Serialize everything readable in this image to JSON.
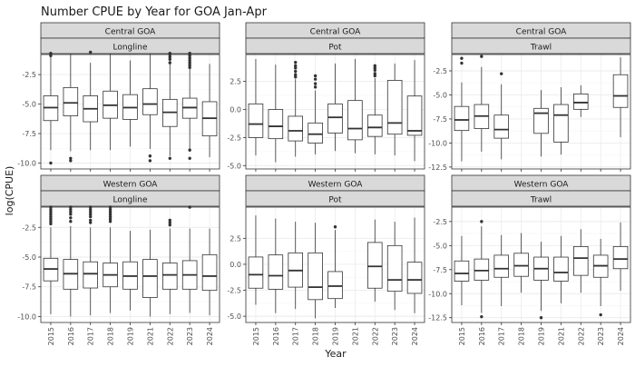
{
  "chart_data": {
    "type": "boxplot",
    "title": "Number CPUE by Year for GOA Jan-Apr",
    "xlabel": "Year",
    "ylabel": "log(CPUE)",
    "categories": [
      "2015",
      "2016",
      "2017",
      "2018",
      "2019",
      "2021",
      "2022",
      "2023",
      "2024"
    ],
    "rows": [
      {
        "region": "Central GOA",
        "panels": [
          {
            "gear": "Longline",
            "ylim": [
              -10.5,
              -0.8
            ],
            "yticks": [
              -2.5,
              -5.0,
              -7.5,
              -10.0
            ],
            "yticklabels": [
              "-2.5",
              "-5.0",
              "-7.5",
              "-10.0"
            ],
            "boxes": [
              {
                "year": "2015",
                "lw": -8.9,
                "q1": -6.4,
                "med": -5.3,
                "q3": -4.3,
                "uw": -1.0,
                "outliers": [
                  -0.7,
                  -0.9,
                  -10.0
                ]
              },
              {
                "year": "2016",
                "lw": -9.0,
                "q1": -6.0,
                "med": -4.9,
                "q3": -3.6,
                "uw": -0.7,
                "outliers": [
                  -9.6,
                  -9.8
                ]
              },
              {
                "year": "2017",
                "lw": -8.9,
                "q1": -6.5,
                "med": -5.4,
                "q3": -4.3,
                "uw": -1.5,
                "outliers": [
                  -0.6
                ]
              },
              {
                "year": "2018",
                "lw": -8.9,
                "q1": -6.2,
                "med": -5.1,
                "q3": -3.9,
                "uw": -0.7,
                "outliers": []
              },
              {
                "year": "2019",
                "lw": -8.6,
                "q1": -6.3,
                "med": -5.3,
                "q3": -4.2,
                "uw": -1.3,
                "outliers": []
              },
              {
                "year": "2021",
                "lw": -8.8,
                "q1": -5.9,
                "med": -5.0,
                "q3": -3.7,
                "uw": -0.7,
                "outliers": [
                  -9.4,
                  -9.8
                ]
              },
              {
                "year": "2022",
                "lw": -9.4,
                "q1": -6.9,
                "med": -5.7,
                "q3": -4.6,
                "uw": -1.0,
                "outliers": [
                  -0.7,
                  -0.8,
                  -1.0,
                  -1.2,
                  -1.5,
                  -9.6
                ]
              },
              {
                "year": "2023",
                "lw": -8.8,
                "q1": -6.2,
                "med": -5.3,
                "q3": -4.5,
                "uw": -1.3,
                "outliers": [
                  -0.7,
                  -0.9,
                  -1.1,
                  -1.3,
                  -1.5,
                  -1.7,
                  -1.9,
                  -8.9,
                  -9.6
                ]
              },
              {
                "year": "2024",
                "lw": -9.5,
                "q1": -7.7,
                "med": -6.2,
                "q3": -4.8,
                "uw": -1.6,
                "outliers": []
              }
            ]
          },
          {
            "gear": "Pot",
            "ylim": [
              -5.3,
              4.9
            ],
            "yticks": [
              2.5,
              0.0,
              -2.5,
              -5.0
            ],
            "yticklabels": [
              "2.5",
              "0.0",
              "-2.5",
              "-5.0"
            ],
            "boxes": [
              {
                "year": "2015",
                "lw": -4.1,
                "q1": -2.5,
                "med": -1.3,
                "q3": 0.5,
                "uw": 4.5,
                "outliers": []
              },
              {
                "year": "2016",
                "lw": -4.7,
                "q1": -2.6,
                "med": -1.5,
                "q3": 0.0,
                "uw": 4.0,
                "outliers": []
              },
              {
                "year": "2017",
                "lw": -4.2,
                "q1": -2.8,
                "med": -1.9,
                "q3": -0.6,
                "uw": 2.7,
                "outliers": [
                  2.9,
                  3.1,
                  3.4,
                  3.7,
                  3.9,
                  4.2
                ]
              },
              {
                "year": "2018",
                "lw": -4.0,
                "q1": -3.0,
                "med": -2.2,
                "q3": -1.2,
                "uw": 1.7,
                "outliers": [
                  2.0,
                  2.3,
                  2.7,
                  3.0
                ]
              },
              {
                "year": "2019",
                "lw": -3.7,
                "q1": -2.1,
                "med": -0.7,
                "q3": 0.5,
                "uw": 4.1,
                "outliers": []
              },
              {
                "year": "2021",
                "lw": -3.9,
                "q1": -2.7,
                "med": -1.7,
                "q3": 0.8,
                "uw": 4.5,
                "outliers": []
              },
              {
                "year": "2022",
                "lw": -4.0,
                "q1": -2.4,
                "med": -1.6,
                "q3": -0.5,
                "uw": 2.8,
                "outliers": [
                  3.0,
                  3.2,
                  3.5,
                  3.7,
                  3.9
                ]
              },
              {
                "year": "2023",
                "lw": -4.1,
                "q1": -2.2,
                "med": -1.2,
                "q3": 2.6,
                "uw": 4.1,
                "outliers": []
              },
              {
                "year": "2024",
                "lw": -4.6,
                "q1": -2.3,
                "med": -1.9,
                "q3": 1.2,
                "uw": 4.4,
                "outliers": []
              }
            ]
          },
          {
            "gear": "Trawl",
            "ylim": [
              -12.7,
              -0.8
            ],
            "yticks": [
              -2.5,
              -5.0,
              -7.5,
              -10.0,
              -12.5
            ],
            "yticklabels": [
              "-2.5",
              "-5.0",
              "-7.5",
              "-10.0",
              "-12.5"
            ],
            "boxes": [
              {
                "year": "2015",
                "lw": -11.9,
                "q1": -8.7,
                "med": -7.6,
                "q3": -6.2,
                "uw": -3.7,
                "outliers": [
                  -1.2,
                  -1.7
                ]
              },
              {
                "year": "2016",
                "lw": -10.9,
                "q1": -8.5,
                "med": -7.2,
                "q3": -6.0,
                "uw": -2.1,
                "outliers": [
                  -1.0
                ]
              },
              {
                "year": "2017",
                "lw": -11.7,
                "q1": -9.5,
                "med": -8.6,
                "q3": -7.1,
                "uw": -3.9,
                "outliers": [
                  -2.8
                ]
              },
              {
                "year": "2019",
                "lw": -11.4,
                "q1": -9.0,
                "med": -6.9,
                "q3": -6.4,
                "uw": -4.5,
                "outliers": []
              },
              {
                "year": "2021",
                "lw": -11.2,
                "q1": -9.9,
                "med": -7.1,
                "q3": -6.0,
                "uw": -4.2,
                "outliers": []
              },
              {
                "year": "2022",
                "lw": -7.3,
                "q1": -6.5,
                "med": -5.8,
                "q3": -4.9,
                "uw": -4.0,
                "outliers": []
              },
              {
                "year": "2024",
                "lw": -9.4,
                "q1": -6.3,
                "med": -5.1,
                "q3": -2.9,
                "uw": -1.1,
                "outliers": []
              }
            ]
          }
        ]
      },
      {
        "region": "Western GOA",
        "panels": [
          {
            "gear": "Longline",
            "ylim": [
              -10.5,
              -0.8
            ],
            "yticks": [
              -2.5,
              -5.0,
              -7.5,
              -10.0
            ],
            "yticklabels": [
              "-2.5",
              "-5.0",
              "-7.5",
              "-10.0"
            ],
            "boxes": [
              {
                "year": "2015",
                "lw": -9.8,
                "q1": -7.0,
                "med": -6.0,
                "q3": -5.1,
                "uw": -2.5,
                "outliers": [
                  -0.8,
                  -1.0,
                  -1.2,
                  -1.4,
                  -1.6,
                  -1.8,
                  -2.0,
                  -2.2
                ]
              },
              {
                "year": "2016",
                "lw": -10.0,
                "q1": -7.7,
                "med": -6.4,
                "q3": -5.2,
                "uw": -2.4,
                "outliers": [
                  -0.8,
                  -1.0,
                  -1.2,
                  -1.4,
                  -1.7,
                  -2.0
                ]
              },
              {
                "year": "2017",
                "lw": -9.9,
                "q1": -7.6,
                "med": -6.4,
                "q3": -5.4,
                "uw": -2.5,
                "outliers": [
                  -0.8,
                  -1.0,
                  -1.2,
                  -1.4,
                  -1.6,
                  -1.9,
                  -2.1
                ]
              },
              {
                "year": "2018",
                "lw": -9.7,
                "q1": -7.5,
                "med": -6.5,
                "q3": -5.5,
                "uw": -2.5,
                "outliers": [
                  -0.8,
                  -1.0,
                  -1.2,
                  -1.4,
                  -1.6,
                  -1.8,
                  -2.0
                ]
              },
              {
                "year": "2019",
                "lw": -9.5,
                "q1": -7.7,
                "med": -6.6,
                "q3": -5.4,
                "uw": -2.8,
                "outliers": []
              },
              {
                "year": "2021",
                "lw": -10.0,
                "q1": -8.4,
                "med": -6.6,
                "q3": -5.2,
                "uw": -2.7,
                "outliers": []
              },
              {
                "year": "2022",
                "lw": -9.8,
                "q1": -7.7,
                "med": -6.5,
                "q3": -5.5,
                "uw": -2.6,
                "outliers": [
                  -1.9,
                  -2.1,
                  -2.3
                ]
              },
              {
                "year": "2023",
                "lw": -9.7,
                "q1": -7.7,
                "med": -6.5,
                "q3": -5.3,
                "uw": -2.6,
                "outliers": [
                  -0.8
                ]
              },
              {
                "year": "2024",
                "lw": -9.9,
                "q1": -7.8,
                "med": -6.6,
                "q3": -4.8,
                "uw": -2.6,
                "outliers": []
              }
            ]
          },
          {
            "gear": "Pot",
            "ylim": [
              -5.6,
              5.5
            ],
            "yticks": [
              2.5,
              0.0,
              -2.5,
              -5.0
            ],
            "yticklabels": [
              "2.5",
              "0.0",
              "-2.5",
              "-5.0"
            ],
            "boxes": [
              {
                "year": "2015",
                "lw": -3.9,
                "q1": -2.3,
                "med": -1.0,
                "q3": 0.7,
                "uw": 4.7,
                "outliers": []
              },
              {
                "year": "2016",
                "lw": -4.7,
                "q1": -2.4,
                "med": -1.1,
                "q3": 0.9,
                "uw": 4.4,
                "outliers": []
              },
              {
                "year": "2017",
                "lw": -4.3,
                "q1": -2.2,
                "med": -0.6,
                "q3": 1.1,
                "uw": 4.1,
                "outliers": []
              },
              {
                "year": "2018",
                "lw": -5.2,
                "q1": -3.4,
                "med": -2.2,
                "q3": 1.1,
                "uw": 4.0,
                "outliers": []
              },
              {
                "year": "2019",
                "lw": -4.2,
                "q1": -3.3,
                "med": -2.1,
                "q3": -0.7,
                "uw": 3.3,
                "outliers": [
                  3.6
                ]
              },
              {
                "year": "2022",
                "lw": -3.6,
                "q1": -2.3,
                "med": -0.2,
                "q3": 2.1,
                "uw": 4.3,
                "outliers": []
              },
              {
                "year": "2023",
                "lw": -4.4,
                "q1": -2.6,
                "med": -1.5,
                "q3": 1.8,
                "uw": 4.1,
                "outliers": []
              },
              {
                "year": "2024",
                "lw": -4.7,
                "q1": -2.8,
                "med": -1.5,
                "q3": 0.2,
                "uw": 4.5,
                "outliers": []
              }
            ]
          },
          {
            "gear": "Trawl",
            "ylim": [
              -13.0,
              -1.0
            ],
            "yticks": [
              -2.5,
              -5.0,
              -7.5,
              -10.0,
              -12.5
            ],
            "yticklabels": [
              "-2.5",
              "-5.0",
              "-7.5",
              "-10.0",
              "-12.5"
            ],
            "boxes": [
              {
                "year": "2015",
                "lw": -11.2,
                "q1": -8.7,
                "med": -7.9,
                "q3": -6.6,
                "uw": -4.0,
                "outliers": []
              },
              {
                "year": "2016",
                "lw": -12.0,
                "q1": -8.6,
                "med": -7.6,
                "q3": -6.4,
                "uw": -3.0,
                "outliers": [
                  -2.5,
                  -12.4
                ]
              },
              {
                "year": "2017",
                "lw": -11.3,
                "q1": -8.3,
                "med": -7.4,
                "q3": -6.0,
                "uw": -3.9,
                "outliers": []
              },
              {
                "year": "2018",
                "lw": -9.9,
                "q1": -8.2,
                "med": -7.1,
                "q3": -5.8,
                "uw": -3.7,
                "outliers": []
              },
              {
                "year": "2019",
                "lw": -11.8,
                "q1": -8.6,
                "med": -7.4,
                "q3": -6.2,
                "uw": -4.6,
                "outliers": [
                  -12.5
                ]
              },
              {
                "year": "2021",
                "lw": -11.0,
                "q1": -8.7,
                "med": -7.8,
                "q3": -6.2,
                "uw": -4.0,
                "outliers": []
              },
              {
                "year": "2022",
                "lw": -9.9,
                "q1": -8.1,
                "med": -6.3,
                "q3": -5.1,
                "uw": -3.3,
                "outliers": []
              },
              {
                "year": "2023",
                "lw": -11.3,
                "q1": -8.3,
                "med": -7.1,
                "q3": -6.0,
                "uw": -4.3,
                "outliers": [
                  -12.2
                ]
              },
              {
                "year": "2024",
                "lw": -9.7,
                "q1": -7.4,
                "med": -6.4,
                "q3": -5.1,
                "uw": -2.6,
                "outliers": []
              }
            ]
          }
        ]
      }
    ],
    "colors": {
      "strip_fill": "#d9d9d9",
      "strip_border": "#333333",
      "panel_border": "#333333",
      "grid_major": "#ebebeb",
      "grid_minor": "#f5f5f5",
      "box_fill": "#ffffff",
      "box_line": "#333333",
      "text": "#1a1a1a",
      "tick_text": "#4d4d4d"
    }
  }
}
